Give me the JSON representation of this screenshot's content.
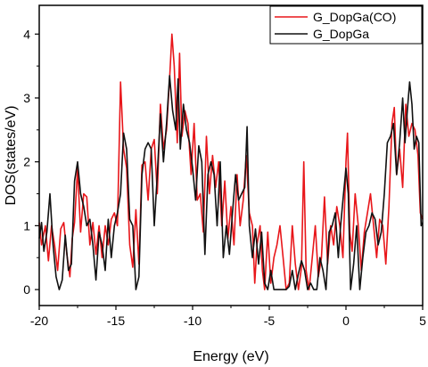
{
  "chart_data": {
    "type": "line",
    "xlabel": "Energy (eV)",
    "ylabel": "DOS(states/eV)",
    "xlim": [
      -20,
      5
    ],
    "ylim": [
      -0.25,
      4.45
    ],
    "xticks": [
      -20,
      -15,
      -10,
      -5,
      0,
      5
    ],
    "yticks": [
      0,
      1,
      2,
      3,
      4
    ],
    "grid": false,
    "legend_position": "top-right",
    "series": [
      {
        "name": "G_DopGa(CO)",
        "color": "#e8161a",
        "points": [
          [
            -20.0,
            1.05
          ],
          [
            -19.85,
            0.7
          ],
          [
            -19.6,
            1.0
          ],
          [
            -19.4,
            0.45
          ],
          [
            -19.2,
            1.0
          ],
          [
            -19.0,
            0.7
          ],
          [
            -18.8,
            0.3
          ],
          [
            -18.6,
            0.95
          ],
          [
            -18.4,
            1.05
          ],
          [
            -18.2,
            0.55
          ],
          [
            -18.0,
            0.2
          ],
          [
            -17.85,
            0.8
          ],
          [
            -17.7,
            1.05
          ],
          [
            -17.5,
            1.9
          ],
          [
            -17.3,
            0.9
          ],
          [
            -17.1,
            1.5
          ],
          [
            -16.9,
            1.45
          ],
          [
            -16.7,
            0.7
          ],
          [
            -16.5,
            1.05
          ],
          [
            -16.3,
            0.55
          ],
          [
            -16.1,
            1.0
          ],
          [
            -15.9,
            0.5
          ],
          [
            -15.7,
            1.0
          ],
          [
            -15.5,
            0.7
          ],
          [
            -15.3,
            1.1
          ],
          [
            -15.1,
            1.2
          ],
          [
            -14.9,
            1.0
          ],
          [
            -14.7,
            3.25
          ],
          [
            -14.5,
            2.2
          ],
          [
            -14.3,
            1.9
          ],
          [
            -14.1,
            0.7
          ],
          [
            -13.9,
            0.35
          ],
          [
            -13.7,
            1.25
          ],
          [
            -13.5,
            0.4
          ],
          [
            -13.3,
            1.95
          ],
          [
            -13.1,
            2.0
          ],
          [
            -12.9,
            1.4
          ],
          [
            -12.7,
            2.2
          ],
          [
            -12.5,
            2.35
          ],
          [
            -12.3,
            1.5
          ],
          [
            -12.1,
            2.9
          ],
          [
            -11.9,
            2.2
          ],
          [
            -11.7,
            2.5
          ],
          [
            -11.5,
            3.3
          ],
          [
            -11.35,
            4.0
          ],
          [
            -11.2,
            3.5
          ],
          [
            -11.0,
            2.3
          ],
          [
            -10.85,
            3.7
          ],
          [
            -10.7,
            2.4
          ],
          [
            -10.5,
            2.8
          ],
          [
            -10.3,
            2.6
          ],
          [
            -10.1,
            1.8
          ],
          [
            -9.9,
            2.6
          ],
          [
            -9.7,
            1.4
          ],
          [
            -9.5,
            1.5
          ],
          [
            -9.3,
            0.9
          ],
          [
            -9.1,
            2.4
          ],
          [
            -8.9,
            1.5
          ],
          [
            -8.7,
            2.1
          ],
          [
            -8.5,
            1.6
          ],
          [
            -8.3,
            2.0
          ],
          [
            -8.1,
            1.0
          ],
          [
            -7.9,
            1.7
          ],
          [
            -7.7,
            0.8
          ],
          [
            -7.5,
            1.3
          ],
          [
            -7.3,
            0.7
          ],
          [
            -7.1,
            1.8
          ],
          [
            -6.9,
            1.0
          ],
          [
            -6.7,
            1.4
          ],
          [
            -6.5,
            2.1
          ],
          [
            -6.3,
            1.2
          ],
          [
            -6.1,
            1.0
          ],
          [
            -5.95,
            0.1
          ],
          [
            -5.8,
            0.7
          ],
          [
            -5.6,
            1.0
          ],
          [
            -5.45,
            0.3
          ],
          [
            -5.3,
            0.0
          ],
          [
            -5.1,
            0.9
          ],
          [
            -4.9,
            0.1
          ],
          [
            -4.7,
            0.5
          ],
          [
            -4.5,
            0.7
          ],
          [
            -4.3,
            1.0
          ],
          [
            -4.1,
            0.5
          ],
          [
            -3.9,
            0.0
          ],
          [
            -3.7,
            0.1
          ],
          [
            -3.5,
            1.0
          ],
          [
            -3.3,
            0.4
          ],
          [
            -3.1,
            0.0
          ],
          [
            -2.9,
            0.35
          ],
          [
            -2.75,
            2.0
          ],
          [
            -2.6,
            0.3
          ],
          [
            -2.4,
            0.0
          ],
          [
            -2.2,
            0.5
          ],
          [
            -2.0,
            1.0
          ],
          [
            -1.8,
            0.2
          ],
          [
            -1.6,
            0.5
          ],
          [
            -1.4,
            1.45
          ],
          [
            -1.2,
            0.4
          ],
          [
            -1.0,
            1.0
          ],
          [
            -0.8,
            0.7
          ],
          [
            -0.6,
            1.3
          ],
          [
            -0.4,
            1.0
          ],
          [
            -0.2,
            0.5
          ],
          [
            0.0,
            2.0
          ],
          [
            0.1,
            2.45
          ],
          [
            0.25,
            0.9
          ],
          [
            0.4,
            0.6
          ],
          [
            0.6,
            1.5
          ],
          [
            0.8,
            1.0
          ],
          [
            1.0,
            0.3
          ],
          [
            1.2,
            0.9
          ],
          [
            1.4,
            1.2
          ],
          [
            1.6,
            1.5
          ],
          [
            1.8,
            1.0
          ],
          [
            2.0,
            0.5
          ],
          [
            2.2,
            1.1
          ],
          [
            2.4,
            1.0
          ],
          [
            2.6,
            0.4
          ],
          [
            2.8,
            1.3
          ],
          [
            3.0,
            2.6
          ],
          [
            3.15,
            2.85
          ],
          [
            3.3,
            1.8
          ],
          [
            3.5,
            2.2
          ],
          [
            3.7,
            1.6
          ],
          [
            3.9,
            2.9
          ],
          [
            4.1,
            2.4
          ],
          [
            4.3,
            2.6
          ],
          [
            4.5,
            2.5
          ],
          [
            4.7,
            2.1
          ],
          [
            4.85,
            1.2
          ],
          [
            5.0,
            1.1
          ]
        ]
      },
      {
        "name": "G_DopGa",
        "color": "#111111",
        "points": [
          [
            -20.0,
            0.8
          ],
          [
            -19.85,
            1.05
          ],
          [
            -19.7,
            0.6
          ],
          [
            -19.5,
            0.9
          ],
          [
            -19.3,
            1.5
          ],
          [
            -19.1,
            0.7
          ],
          [
            -18.9,
            0.2
          ],
          [
            -18.7,
            0.0
          ],
          [
            -18.5,
            0.15
          ],
          [
            -18.3,
            0.85
          ],
          [
            -18.1,
            0.3
          ],
          [
            -17.9,
            0.4
          ],
          [
            -17.7,
            1.7
          ],
          [
            -17.5,
            2.0
          ],
          [
            -17.3,
            1.5
          ],
          [
            -17.1,
            1.3
          ],
          [
            -16.9,
            1.0
          ],
          [
            -16.7,
            1.1
          ],
          [
            -16.5,
            0.7
          ],
          [
            -16.3,
            0.15
          ],
          [
            -16.1,
            0.9
          ],
          [
            -15.9,
            0.7
          ],
          [
            -15.7,
            0.3
          ],
          [
            -15.5,
            1.1
          ],
          [
            -15.3,
            0.5
          ],
          [
            -15.1,
            1.0
          ],
          [
            -14.9,
            1.2
          ],
          [
            -14.7,
            1.5
          ],
          [
            -14.5,
            2.45
          ],
          [
            -14.3,
            2.2
          ],
          [
            -14.1,
            1.1
          ],
          [
            -13.9,
            1.0
          ],
          [
            -13.7,
            0.0
          ],
          [
            -13.5,
            0.2
          ],
          [
            -13.3,
            1.8
          ],
          [
            -13.1,
            2.2
          ],
          [
            -12.9,
            2.3
          ],
          [
            -12.7,
            2.2
          ],
          [
            -12.5,
            1.0
          ],
          [
            -12.3,
            1.8
          ],
          [
            -12.1,
            2.75
          ],
          [
            -11.9,
            2.0
          ],
          [
            -11.7,
            2.6
          ],
          [
            -11.5,
            3.35
          ],
          [
            -11.3,
            2.8
          ],
          [
            -11.1,
            2.5
          ],
          [
            -10.95,
            3.3
          ],
          [
            -10.8,
            2.2
          ],
          [
            -10.6,
            2.9
          ],
          [
            -10.4,
            2.5
          ],
          [
            -10.2,
            2.3
          ],
          [
            -10.0,
            1.9
          ],
          [
            -9.8,
            1.4
          ],
          [
            -9.6,
            2.25
          ],
          [
            -9.4,
            2.0
          ],
          [
            -9.2,
            0.55
          ],
          [
            -9.0,
            1.8
          ],
          [
            -8.8,
            2.0
          ],
          [
            -8.6,
            1.8
          ],
          [
            -8.4,
            1.0
          ],
          [
            -8.2,
            2.0
          ],
          [
            -8.0,
            0.5
          ],
          [
            -7.8,
            1.0
          ],
          [
            -7.6,
            0.55
          ],
          [
            -7.4,
            1.2
          ],
          [
            -7.2,
            1.8
          ],
          [
            -7.0,
            1.4
          ],
          [
            -6.8,
            1.5
          ],
          [
            -6.6,
            1.6
          ],
          [
            -6.45,
            2.55
          ],
          [
            -6.3,
            1.0
          ],
          [
            -6.1,
            0.5
          ],
          [
            -5.9,
            0.95
          ],
          [
            -5.7,
            0.4
          ],
          [
            -5.5,
            0.9
          ],
          [
            -5.3,
            0.1
          ],
          [
            -5.1,
            0.0
          ],
          [
            -4.9,
            0.3
          ],
          [
            -4.7,
            0.0
          ],
          [
            -4.5,
            0.0
          ],
          [
            -4.3,
            0.0
          ],
          [
            -4.1,
            0.0
          ],
          [
            -3.9,
            0.0
          ],
          [
            -3.7,
            0.05
          ],
          [
            -3.5,
            0.3
          ],
          [
            -3.3,
            0.0
          ],
          [
            -3.1,
            0.25
          ],
          [
            -2.9,
            0.45
          ],
          [
            -2.7,
            0.3
          ],
          [
            -2.5,
            0.0
          ],
          [
            -2.3,
            0.1
          ],
          [
            -2.1,
            0.0
          ],
          [
            -1.9,
            0.0
          ],
          [
            -1.7,
            0.5
          ],
          [
            -1.5,
            0.3
          ],
          [
            -1.3,
            0.0
          ],
          [
            -1.1,
            0.9
          ],
          [
            -0.9,
            1.0
          ],
          [
            -0.7,
            1.2
          ],
          [
            -0.5,
            0.5
          ],
          [
            -0.35,
            1.0
          ],
          [
            -0.2,
            1.4
          ],
          [
            0.0,
            1.9
          ],
          [
            0.15,
            1.5
          ],
          [
            0.3,
            0.0
          ],
          [
            0.5,
            0.4
          ],
          [
            0.7,
            1.0
          ],
          [
            0.9,
            0.0
          ],
          [
            1.1,
            0.5
          ],
          [
            1.3,
            0.9
          ],
          [
            1.5,
            1.0
          ],
          [
            1.7,
            1.2
          ],
          [
            1.9,
            1.1
          ],
          [
            2.1,
            0.7
          ],
          [
            2.3,
            0.9
          ],
          [
            2.5,
            1.5
          ],
          [
            2.7,
            2.3
          ],
          [
            2.9,
            2.4
          ],
          [
            3.1,
            2.6
          ],
          [
            3.3,
            1.8
          ],
          [
            3.5,
            2.3
          ],
          [
            3.7,
            3.0
          ],
          [
            3.85,
            2.3
          ],
          [
            4.0,
            2.8
          ],
          [
            4.15,
            3.25
          ],
          [
            4.3,
            2.9
          ],
          [
            4.45,
            2.2
          ],
          [
            4.6,
            2.4
          ],
          [
            4.75,
            2.3
          ],
          [
            4.9,
            1.0
          ],
          [
            5.0,
            1.05
          ]
        ]
      }
    ]
  }
}
